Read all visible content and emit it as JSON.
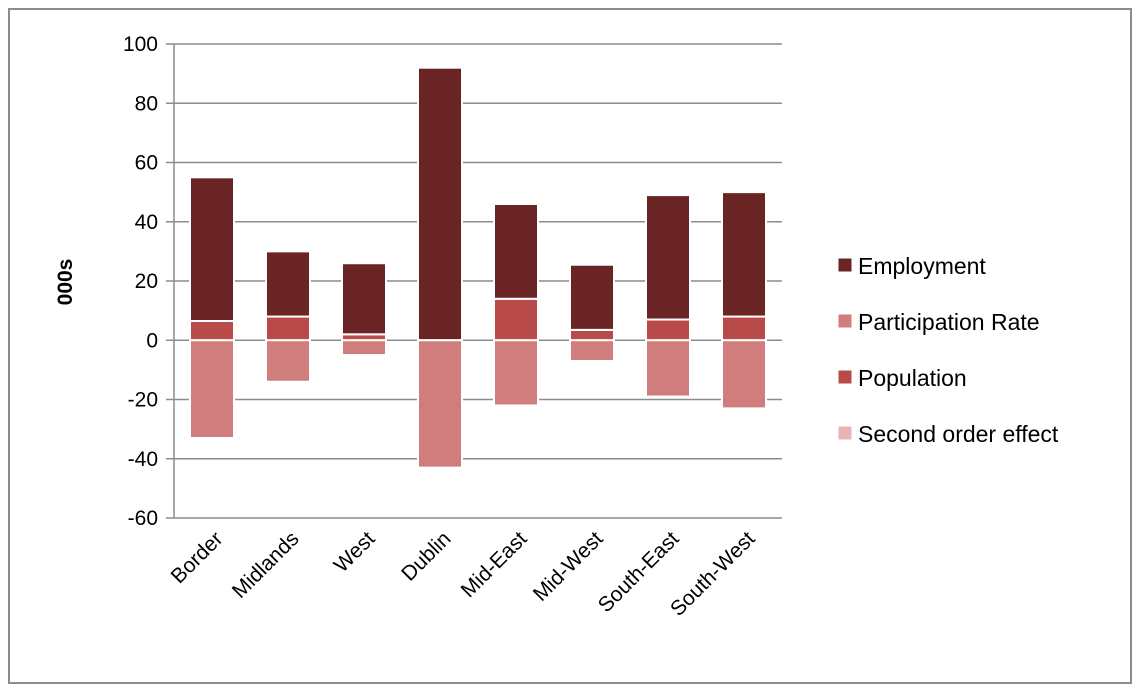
{
  "chart_data": {
    "type": "bar",
    "stacked": true,
    "title": "",
    "xlabel": "",
    "ylabel": "000s",
    "ylim": [
      -60,
      100
    ],
    "yticks": [
      100,
      80,
      60,
      40,
      20,
      0,
      -20,
      -40,
      -60
    ],
    "grid": true,
    "legend_position": "right",
    "categories": [
      "Border",
      "Midlands",
      "West",
      "Dublin",
      "Mid-East",
      "Mid-West",
      "South-East",
      "South-West"
    ],
    "series": [
      {
        "name": "Employment",
        "color": "#6b2424",
        "values": [
          48.5,
          22,
          24,
          92,
          32,
          22,
          42,
          42
        ]
      },
      {
        "name": "Participation Rate",
        "color": "#cf7d7d",
        "values": [
          -33,
          -14,
          -5,
          -43,
          -22,
          -7,
          -19,
          -23
        ]
      },
      {
        "name": "Population",
        "color": "#b84a4a",
        "values": [
          6.5,
          8,
          2,
          0,
          14,
          3.5,
          7,
          8
        ]
      },
      {
        "name": "Second order effect",
        "color": "#e8b4b4",
        "values": [
          0,
          0,
          0,
          0,
          0,
          0,
          0,
          0
        ]
      }
    ]
  }
}
